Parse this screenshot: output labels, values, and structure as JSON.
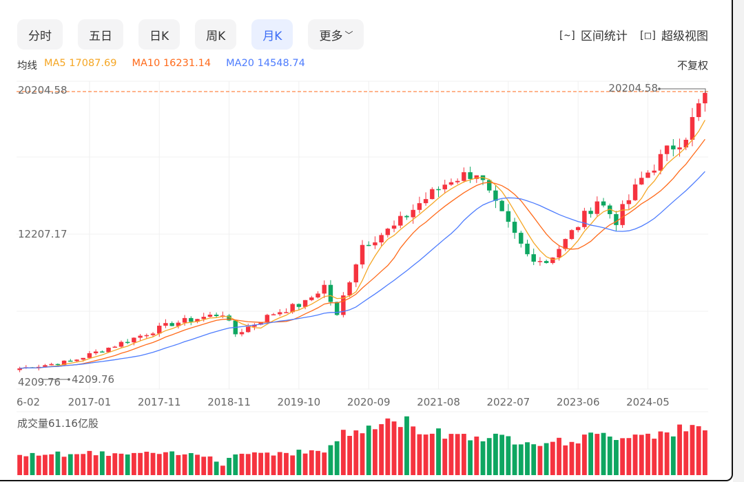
{
  "tabs": [
    {
      "label": "分时"
    },
    {
      "label": "五日"
    },
    {
      "label": "日K"
    },
    {
      "label": "周K"
    },
    {
      "label": "月K",
      "active": true
    },
    {
      "label": "更多"
    }
  ],
  "tools": {
    "range_stats": "区间统计",
    "super_view": "超级视图",
    "range_icon": "[~]",
    "super_icon": "[□]"
  },
  "ma": {
    "label": "均线",
    "ma5": "MA5 17087.69",
    "ma10": "MA10 16231.14",
    "ma20": "MA20 14548.74"
  },
  "adjust": "不复权",
  "colors": {
    "up": "#f5333f",
    "down": "#0ea661",
    "ma5": "#f5a623",
    "ma10": "#ff6a1a",
    "ma20": "#4d7cfe",
    "accent": "#3b6cf6"
  },
  "chart_data": {
    "type": "candlestick",
    "y_max_label": "20204.58",
    "y_mid_label": "12207.17",
    "y_min_label": "4209.76",
    "ylim": [
      4209.76,
      20204.58
    ],
    "high_marker": "20204.58",
    "low_marker": "4209.76",
    "x_labels": [
      "6-02",
      "2017-01",
      "2017-11",
      "2018-11",
      "2019-10",
      "2020-09",
      "2021-08",
      "2022-07",
      "2023-06",
      "2024-05"
    ],
    "x_label_index": [
      1,
      11,
      22,
      33,
      44,
      55,
      66,
      77,
      88,
      99
    ],
    "count": 109,
    "close_keypoints": [
      [
        0,
        4675
      ],
      [
        8,
        5060
      ],
      [
        14,
        5834
      ],
      [
        24,
        7186
      ],
      [
        32,
        7766
      ],
      [
        34,
        6606
      ],
      [
        40,
        7766
      ],
      [
        45,
        8345
      ],
      [
        48,
        9311
      ],
      [
        50,
        7573
      ],
      [
        51,
        8700
      ],
      [
        54,
        11628
      ],
      [
        59,
        12594
      ],
      [
        63,
        13946
      ],
      [
        68,
        15298
      ],
      [
        72,
        15685
      ],
      [
        75,
        13753
      ],
      [
        80,
        11049
      ],
      [
        83,
        10663
      ],
      [
        86,
        11822
      ],
      [
        91,
        14140
      ],
      [
        94,
        12981
      ],
      [
        98,
        15298
      ],
      [
        102,
        16843
      ],
      [
        105,
        17809
      ],
      [
        108,
        20127
      ]
    ],
    "volume_label": "成交量61.16亿股",
    "volume_keypoints": [
      [
        0,
        30
      ],
      [
        30,
        28
      ],
      [
        32,
        15
      ],
      [
        34,
        30
      ],
      [
        48,
        32
      ],
      [
        50,
        52
      ],
      [
        56,
        66
      ],
      [
        60,
        75
      ],
      [
        64,
        60
      ],
      [
        70,
        55
      ],
      [
        76,
        50
      ],
      [
        85,
        45
      ],
      [
        90,
        52
      ],
      [
        100,
        58
      ],
      [
        105,
        62
      ],
      [
        108,
        61.16
      ]
    ]
  }
}
